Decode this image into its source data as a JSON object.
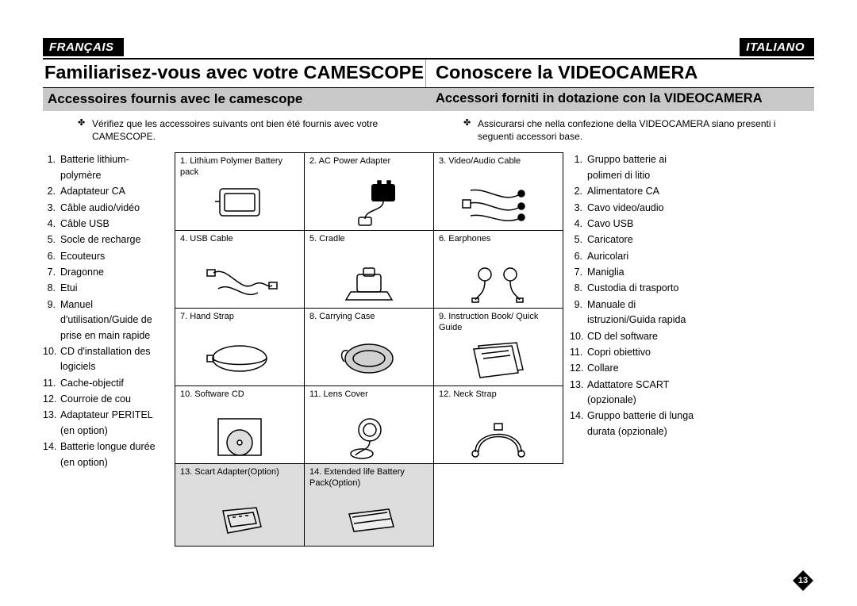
{
  "page_number": "13",
  "left_lang_label": "FRANÇAIS",
  "right_lang_label": "ITALIANO",
  "left_title": "Familiarisez-vous avec votre CAMESCOPE",
  "right_title": "Conoscere la VIDEOCAMERA",
  "left_subtitle": "Accessoires fournis avec le camescope",
  "right_subtitle": "Accessori forniti in dotazione con la VIDEOCAMERA",
  "left_intro": "Vérifiez que les accessoires suivants ont bien été fournis avec votre CAMESCOPE.",
  "right_intro": "Assicurarsi che nella confezione della VIDEOCAMERA siano presenti i seguenti accessori base.",
  "left_items": [
    "Batterie lithium-polymère",
    "Adaptateur CA",
    "Câble audio/vidéo",
    "Câble USB",
    "Socle de recharge",
    "Ecouteurs",
    "Dragonne",
    "Etui",
    "Manuel d'utilisation/Guide de prise en main rapide",
    "CD d'installation des logiciels",
    "Cache-objectif",
    "Courroie de cou",
    "Adaptateur PERITEL (en option)",
    "Batterie longue durée (en option)"
  ],
  "right_items": [
    "Gruppo batterie ai polimeri di litio",
    "Alimentatore CA",
    "Cavo video/audio",
    "Cavo USB",
    "Caricatore",
    "Auricolari",
    "Maniglia",
    "Custodia di trasporto",
    "Manuale di istruzioni/Guida rapida",
    "CD del software",
    "Copri obiettivo",
    "Collare",
    "Adattatore SCART (opzionale)",
    "Gruppo batterie di lunga durata (opzionale)"
  ],
  "accessories": [
    {
      "n": "1",
      "label": "Lithium Polymer Battery pack",
      "icon": "battery"
    },
    {
      "n": "2",
      "label": "AC Power Adapter",
      "icon": "adapter"
    },
    {
      "n": "3",
      "label": "Video/Audio Cable",
      "icon": "avcable"
    },
    {
      "n": "4",
      "label": "USB Cable",
      "icon": "usb"
    },
    {
      "n": "5",
      "label": "Cradle",
      "icon": "cradle"
    },
    {
      "n": "6",
      "label": "Earphones",
      "icon": "earphones"
    },
    {
      "n": "7",
      "label": "Hand Strap",
      "icon": "strap"
    },
    {
      "n": "8",
      "label": "Carrying Case",
      "icon": "case"
    },
    {
      "n": "9",
      "label": "Instruction Book/ Quick Guide",
      "icon": "book"
    },
    {
      "n": "10",
      "label": "Software CD",
      "icon": "cd"
    },
    {
      "n": "11",
      "label": "Lens Cover",
      "icon": "lenscap"
    },
    {
      "n": "12",
      "label": "Neck Strap",
      "icon": "neckstrap"
    },
    {
      "n": "13",
      "label": "Scart Adapter(Option)",
      "icon": "scart",
      "shaded": true
    },
    {
      "n": "14",
      "label": "Extended life Battery Pack(Option)",
      "icon": "extbattery",
      "shaded": true
    }
  ],
  "colors": {
    "border": "#000000",
    "shaded_bg": "#dcdcdc",
    "subtitle_bg": "#c8c8c8",
    "text": "#000000",
    "page_bg": "#ffffff"
  },
  "typography": {
    "title_size_pt": 18,
    "subtitle_size_pt": 13,
    "list_size_pt": 9.5,
    "cell_caption_size_pt": 8.5
  },
  "layout": {
    "columns": [
      "left_list",
      "accessory_grid_3x5(last row 2 cells)",
      "right_list"
    ],
    "grid_cols": 3,
    "grid_rows": 5
  }
}
